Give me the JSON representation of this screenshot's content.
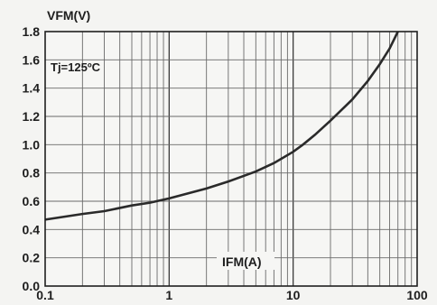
{
  "chart_data": {
    "type": "line",
    "title": "",
    "ylabel": "VFM(V)",
    "xlabel": "IFM(A)",
    "annotation": "Tj=125ºC",
    "x_scale": "log",
    "xlim": [
      0.1,
      100
    ],
    "ylim": [
      0.0,
      1.8
    ],
    "x_ticks": [
      0.1,
      1,
      10,
      100
    ],
    "x_tick_labels": [
      "0.1",
      "1",
      "10",
      "100"
    ],
    "y_ticks": [
      0.0,
      0.2,
      0.4,
      0.6,
      0.8,
      1.0,
      1.2,
      1.4,
      1.6,
      1.8
    ],
    "y_tick_labels": [
      "0.0",
      "0.2",
      "0.4",
      "0.6",
      "0.8",
      "1.0",
      "1.2",
      "1.4",
      "1.6",
      "1.8"
    ],
    "grid": true,
    "legend": "none",
    "line_color": "#2a2a2a",
    "series": [
      {
        "x": [
          0.1,
          0.2,
          0.3,
          0.5,
          0.7,
          1,
          2,
          3,
          5,
          7,
          10,
          12,
          15,
          20,
          30,
          40,
          50,
          60,
          70
        ],
        "y": [
          0.47,
          0.51,
          0.53,
          0.57,
          0.59,
          0.62,
          0.69,
          0.74,
          0.81,
          0.87,
          0.95,
          1.0,
          1.07,
          1.17,
          1.32,
          1.45,
          1.57,
          1.68,
          1.8
        ]
      }
    ]
  }
}
